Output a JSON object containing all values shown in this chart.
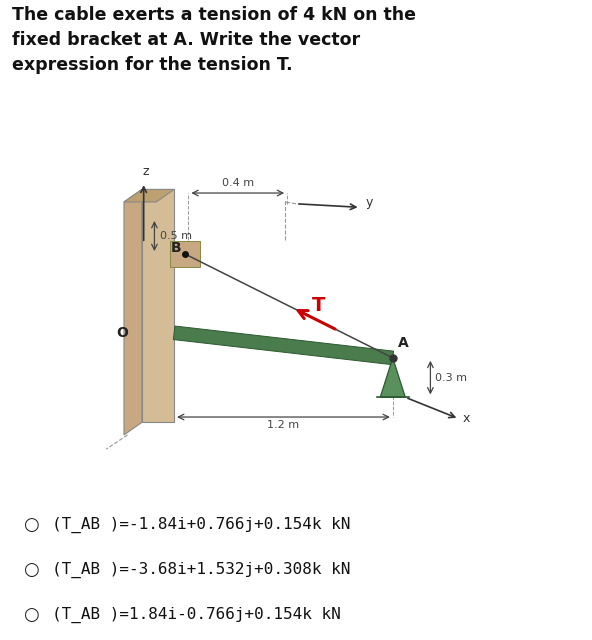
{
  "title_text": "The cable exerts a tension of 4 kN on the\nfixed bracket at A. Write the vector\nexpression for the tension T.",
  "title_fontsize": 12.5,
  "title_fontweight": "bold",
  "bg_color": "#ffffff",
  "options": [
    "O(T_AB )=-1.84i+0.766j+0.154k kN",
    "O(T_AB )=-3.68i+1.532j+0.308k kN",
    "O(T_AB )=1.84i-0.766j+0.154k kN"
  ],
  "option_fontsize": 11.5,
  "option_fontweight": "normal",
  "wall_color_side": "#c8a882",
  "wall_color_front": "#d4bc96",
  "rod_color": "#4a7c4e",
  "rod_edge_color": "#2d5a30",
  "cable_color": "#444444",
  "tension_arrow_color": "#cc0000",
  "bracket_color": "#5a8f5e",
  "dim_color": "#444444",
  "axis_color": "#333333",
  "dashed_color": "#999999"
}
